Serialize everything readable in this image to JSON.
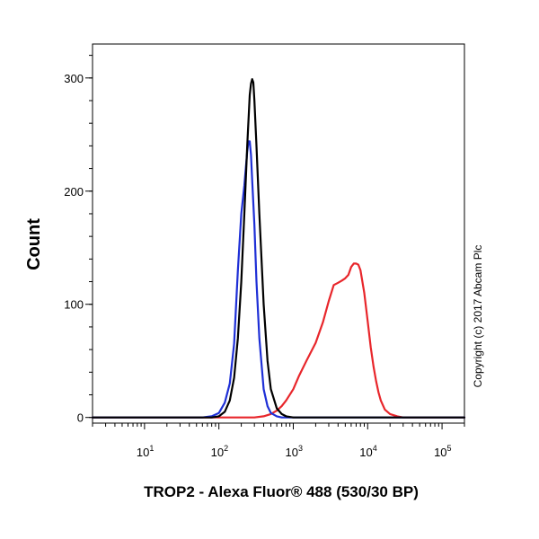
{
  "chart_data": {
    "type": "line",
    "title": "",
    "xlabel": "TROP2 - Alexa Fluor® 488 (530/30 BP)",
    "ylabel": "Count",
    "x_scale": "log",
    "xlim": [
      2,
      200000
    ],
    "ylim": [
      -5,
      330
    ],
    "x_ticks": [
      {
        "value": 10,
        "base": "10",
        "exp": "1"
      },
      {
        "value": 100,
        "base": "10",
        "exp": "2"
      },
      {
        "value": 1000,
        "base": "10",
        "exp": "3"
      },
      {
        "value": 10000,
        "base": "10",
        "exp": "4"
      },
      {
        "value": 100000,
        "base": "10",
        "exp": "5"
      }
    ],
    "y_ticks": [
      {
        "value": 0,
        "label": "0"
      },
      {
        "value": 100,
        "label": "100"
      },
      {
        "value": 200,
        "label": "200"
      },
      {
        "value": 300,
        "label": "300"
      }
    ],
    "grid": false,
    "legend": null,
    "annotation": "Copyright (c) 2017 Abcam Plc",
    "series": [
      {
        "color": "#e8262b",
        "x": [
          2,
          300,
          400,
          500,
          600,
          700,
          800,
          1000,
          1200,
          1500,
          2000,
          2500,
          3000,
          3500,
          4000,
          4500,
          5000,
          5500,
          6000,
          6500,
          7000,
          7500,
          8000,
          9000,
          10000,
          11000,
          12000,
          13000,
          14000,
          15000,
          17000,
          20000,
          25000,
          30000,
          200000
        ],
        "y": [
          0,
          0,
          1,
          3,
          6,
          10,
          15,
          25,
          37,
          50,
          66,
          84,
          103,
          117,
          119,
          121,
          123,
          126,
          133,
          136,
          136,
          135,
          130,
          110,
          85,
          62,
          45,
          32,
          22,
          15,
          7,
          3,
          1,
          0,
          0
        ]
      },
      {
        "color": "#1e2fd6",
        "x": [
          2,
          60,
          80,
          100,
          120,
          140,
          160,
          180,
          200,
          220,
          240,
          250,
          260,
          270,
          280,
          300,
          320,
          350,
          400,
          450,
          500,
          600,
          700,
          200000
        ],
        "y": [
          0,
          0,
          1,
          4,
          13,
          30,
          65,
          130,
          180,
          205,
          235,
          244,
          244,
          232,
          210,
          170,
          120,
          70,
          25,
          10,
          4,
          1,
          0,
          0
        ]
      },
      {
        "color": "#000000",
        "x": [
          2,
          80,
          100,
          120,
          140,
          160,
          180,
          200,
          220,
          240,
          260,
          270,
          280,
          290,
          300,
          320,
          350,
          400,
          450,
          500,
          600,
          700,
          800,
          1000,
          200000
        ],
        "y": [
          0,
          0,
          1,
          5,
          15,
          35,
          70,
          120,
          180,
          240,
          285,
          295,
          299,
          296,
          280,
          240,
          180,
          100,
          50,
          25,
          8,
          3,
          1,
          0,
          0
        ]
      }
    ]
  }
}
